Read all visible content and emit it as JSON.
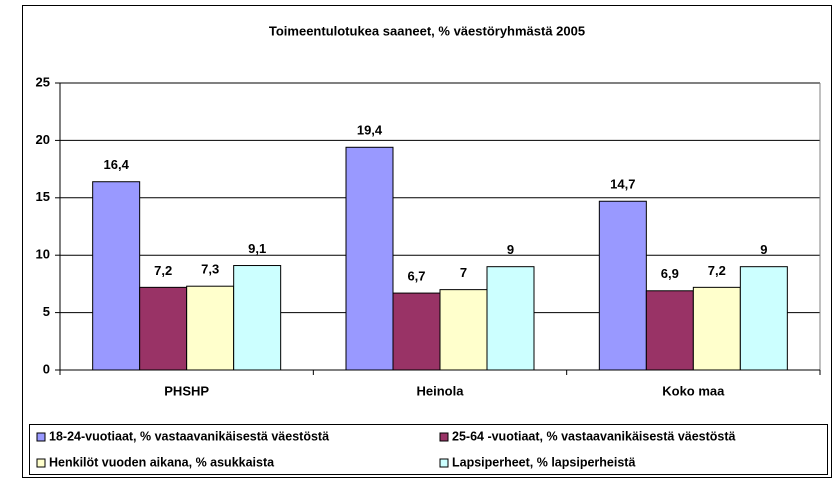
{
  "chart_data": {
    "type": "bar",
    "title": "Toimeentulotukea saaneet, % väestöryhmästä 2005",
    "categories": [
      "PHSHP",
      "Heinola",
      "Koko maa"
    ],
    "series": [
      {
        "name": "18-24-vuotiaat, % vastaavanikäisestä väestöstä",
        "color": "#9999ff",
        "values": [
          16.4,
          19.4,
          14.7
        ],
        "value_labels": [
          "16,4",
          "19,4",
          "14,7"
        ]
      },
      {
        "name": "25-64 -vuotiaat, % vastaavanikäisestä väestöstä",
        "color": "#993366",
        "values": [
          7.2,
          6.7,
          6.9
        ],
        "value_labels": [
          "7,2",
          "6,7",
          "6,9"
        ]
      },
      {
        "name": "Henkilöt vuoden aikana, % asukkaista",
        "color": "#ffffcc",
        "values": [
          7.3,
          7,
          7.2
        ],
        "value_labels": [
          "7,3",
          "7",
          "7,2"
        ]
      },
      {
        "name": "Lapsiperheet, % lapsiperheistä",
        "color": "#ccffff",
        "values": [
          9.1,
          9,
          9
        ],
        "value_labels": [
          "9,1",
          "9",
          "9"
        ]
      }
    ],
    "ylim": [
      0,
      25
    ],
    "yticks": [
      0,
      5,
      10,
      15,
      20,
      25
    ],
    "grid": true,
    "legend": "bottom"
  }
}
